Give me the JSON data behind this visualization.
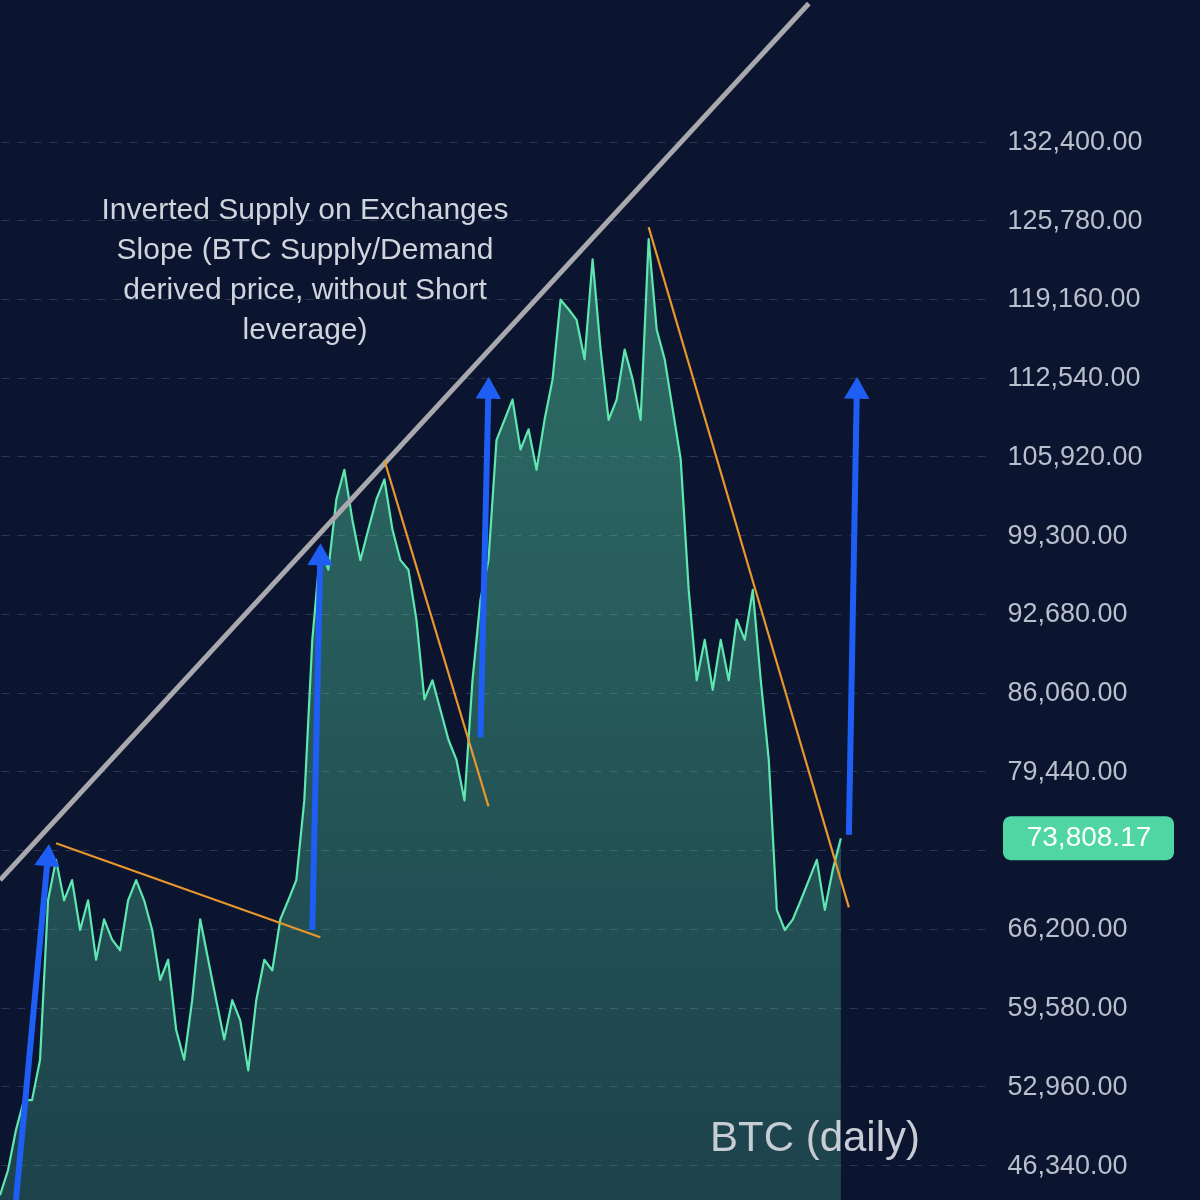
{
  "chart_data": {
    "type": "area",
    "categories": [
      null,
      null,
      null,
      null,
      null,
      null,
      null,
      null,
      null,
      null,
      null,
      null,
      null,
      null,
      null,
      null,
      null,
      null,
      null,
      null,
      null,
      null,
      null,
      null,
      null,
      null,
      null,
      null,
      null,
      null,
      null,
      null,
      null,
      null,
      null,
      null,
      null,
      null,
      null,
      null,
      null,
      null,
      null,
      null,
      null,
      null,
      null,
      null,
      null,
      null,
      null,
      null,
      null,
      null,
      null,
      null,
      null,
      null,
      null,
      null,
      null,
      null,
      null,
      null,
      null,
      null,
      null,
      null,
      null,
      null,
      null,
      null,
      null,
      null,
      null,
      null,
      null,
      null,
      null,
      null,
      null,
      null,
      null,
      null,
      null,
      null,
      null,
      null,
      null,
      null,
      null,
      null,
      null,
      null,
      null,
      null,
      null,
      null,
      null,
      null,
      null,
      null,
      null,
      null,
      null,
      null,
      null,
      null,
      null,
      null,
      null,
      null,
      null,
      null,
      null,
      null,
      null,
      null,
      null,
      null,
      null,
      null,
      null,
      null
    ],
    "series": [
      {
        "color": "#5ee8b0",
        "values": [
          43800,
          45900,
          49300,
          51800,
          51800,
          55200,
          68600,
          72000,
          68600,
          70300,
          66100,
          68600,
          63600,
          67000,
          65300,
          64400,
          68600,
          70300,
          68600,
          66100,
          61900,
          63600,
          57700,
          55200,
          60200,
          67000,
          63600,
          60200,
          56900,
          60200,
          58500,
          54300,
          60200,
          63600,
          62700,
          67000,
          68600,
          70300,
          77000,
          90500,
          98100,
          96400,
          102300,
          104800,
          100600,
          97200,
          99800,
          102300,
          104000,
          99800,
          97200,
          96400,
          92200,
          85500,
          87100,
          84600,
          82100,
          80400,
          77000,
          87100,
          93900,
          97200,
          107300,
          109000,
          110700,
          106500,
          108200,
          104800,
          109000,
          112400,
          119100,
          118300,
          117400,
          114100,
          122500,
          114900,
          109000,
          110700,
          114900,
          112400,
          109000,
          124200,
          116600,
          114100,
          109900,
          105700,
          94700,
          87100,
          90500,
          86300,
          90500,
          87100,
          92200,
          90500,
          94700,
          87100,
          80400,
          67800,
          66100,
          67000,
          68600,
          70300,
          72000,
          67800,
          71200,
          73808.17,
          null,
          null,
          null,
          null,
          null,
          null,
          null,
          null,
          null,
          null,
          null,
          null,
          null,
          null,
          null,
          null,
          null,
          null
        ]
      },
      {
        "type": "line",
        "color": "#a9a9ad",
        "values": [
          70300,
          null,
          null,
          null,
          null,
          null,
          null,
          null,
          null,
          null,
          null,
          null,
          null,
          null,
          null,
          null,
          null,
          null,
          null,
          null,
          null,
          null,
          null,
          null,
          null,
          null,
          null,
          null,
          null,
          null,
          null,
          null,
          null,
          null,
          null,
          null,
          null,
          null,
          null,
          null,
          null,
          null,
          null,
          null,
          null,
          null,
          null,
          null,
          null,
          null,
          null,
          null,
          null,
          null,
          null,
          null,
          null,
          null,
          null,
          null,
          null,
          null,
          null,
          null,
          null,
          null,
          null,
          null,
          null,
          null,
          null,
          null,
          null,
          null,
          null,
          null,
          null,
          null,
          null,
          null,
          null,
          null,
          null,
          null,
          null,
          null,
          null,
          null,
          null,
          null,
          null,
          null,
          null,
          null,
          null,
          null,
          null,
          null,
          null,
          null,
          null,
          144000,
          null,
          null,
          null,
          null,
          null,
          null,
          null,
          null,
          null,
          null,
          null,
          null,
          null,
          null,
          null,
          null,
          null,
          null,
          null,
          null,
          null,
          null
        ]
      },
      {
        "type": "line",
        "color": "#e8962e",
        "values": [
          null,
          null,
          null,
          null,
          null,
          null,
          null,
          73400,
          null,
          null,
          null,
          null,
          null,
          null,
          null,
          null,
          null,
          null,
          null,
          null,
          null,
          null,
          null,
          null,
          null,
          null,
          null,
          null,
          null,
          null,
          null,
          null,
          null,
          null,
          null,
          null,
          null,
          null,
          null,
          null,
          65500,
          null,
          null,
          null,
          null,
          null,
          null,
          null,
          null,
          null,
          null,
          null,
          null,
          null,
          null,
          null,
          null,
          null,
          null,
          null,
          null,
          null,
          null,
          null,
          null,
          null,
          null,
          null,
          null,
          null,
          null,
          null,
          null,
          null,
          null,
          null,
          null,
          null,
          null,
          null,
          null,
          null,
          null,
          null,
          null,
          null,
          null,
          null,
          null,
          null,
          null,
          null,
          null,
          null,
          null,
          null,
          null,
          null,
          null,
          null,
          null,
          null,
          null,
          null,
          null,
          null,
          null,
          null,
          null,
          null,
          null,
          null,
          null,
          null,
          null,
          null,
          null,
          null,
          null,
          null,
          null,
          null,
          null,
          null
        ]
      },
      {
        "type": "line",
        "color": "#e8962e",
        "values": [
          null,
          null,
          null,
          null,
          null,
          null,
          null,
          null,
          null,
          null,
          null,
          null,
          null,
          null,
          null,
          null,
          null,
          null,
          null,
          null,
          null,
          null,
          null,
          null,
          null,
          null,
          null,
          null,
          null,
          null,
          null,
          null,
          null,
          null,
          null,
          null,
          null,
          null,
          null,
          null,
          null,
          null,
          null,
          null,
          null,
          null,
          null,
          null,
          105600,
          null,
          null,
          null,
          null,
          null,
          null,
          null,
          null,
          null,
          null,
          null,
          null,
          76500,
          null,
          null,
          null,
          null,
          null,
          null,
          null,
          null,
          null,
          null,
          null,
          null,
          null,
          null,
          null,
          null,
          null,
          null,
          null,
          null,
          null,
          null,
          null,
          null,
          null,
          null,
          null,
          null,
          null,
          null,
          null,
          null,
          null,
          null,
          null,
          null,
          null,
          null,
          null,
          null,
          null,
          null,
          null,
          null,
          null,
          null,
          null,
          null,
          null,
          null,
          null,
          null,
          null,
          null,
          null,
          null,
          null,
          null,
          null,
          null,
          null,
          null
        ]
      },
      {
        "type": "line",
        "color": "#e8962e",
        "values": [
          null,
          null,
          null,
          null,
          null,
          null,
          null,
          null,
          null,
          null,
          null,
          null,
          null,
          null,
          null,
          null,
          null,
          null,
          null,
          null,
          null,
          null,
          null,
          null,
          null,
          null,
          null,
          null,
          null,
          null,
          null,
          null,
          null,
          null,
          null,
          null,
          null,
          null,
          null,
          null,
          null,
          null,
          null,
          null,
          null,
          null,
          null,
          null,
          null,
          null,
          null,
          null,
          null,
          null,
          null,
          null,
          null,
          null,
          null,
          null,
          null,
          null,
          null,
          null,
          null,
          null,
          null,
          null,
          null,
          null,
          null,
          null,
          null,
          null,
          null,
          null,
          null,
          null,
          null,
          null,
          null,
          125200,
          null,
          null,
          null,
          null,
          null,
          null,
          null,
          null,
          null,
          null,
          null,
          null,
          null,
          null,
          null,
          null,
          null,
          null,
          null,
          null,
          null,
          null,
          null,
          null,
          68000,
          null,
          null,
          null,
          null,
          null,
          null,
          null,
          null,
          null,
          null,
          null,
          null,
          null,
          null,
          null,
          null,
          null
        ]
      },
      {
        "type": "line",
        "color": "#1f5ef5",
        "marker": "triangle",
        "values": [
          null,
          null,
          43400,
          null,
          null,
          null,
          72400,
          null,
          null,
          null,
          null,
          null,
          null,
          null,
          null,
          null,
          null,
          null,
          null,
          null,
          null,
          null,
          null,
          null,
          null,
          null,
          null,
          null,
          null,
          null,
          null,
          null,
          null,
          null,
          null,
          null,
          null,
          null,
          null,
          null,
          null,
          null,
          null,
          null,
          null,
          null,
          null,
          null,
          null,
          null,
          null,
          null,
          null,
          null,
          null,
          null,
          null,
          null,
          null,
          null,
          null,
          null,
          null,
          null,
          null,
          null,
          null,
          null,
          null,
          null,
          null,
          null,
          null,
          null,
          null,
          null,
          null,
          null,
          null,
          null,
          null,
          null,
          null,
          null,
          null,
          null,
          null,
          null,
          null,
          null,
          null,
          null,
          null,
          null,
          null,
          null,
          null,
          null,
          null,
          null,
          null,
          null,
          null,
          null,
          null,
          null,
          null,
          null,
          null,
          null,
          null,
          null,
          null,
          null,
          null,
          null,
          null,
          null,
          null,
          null,
          null,
          null,
          null,
          null
        ]
      },
      {
        "type": "line",
        "color": "#1f5ef5",
        "marker": "triangle",
        "values": [
          null,
          null,
          null,
          null,
          null,
          null,
          null,
          null,
          null,
          null,
          null,
          null,
          null,
          null,
          null,
          null,
          null,
          null,
          null,
          null,
          null,
          null,
          null,
          null,
          null,
          null,
          null,
          null,
          null,
          null,
          null,
          null,
          null,
          null,
          null,
          null,
          null,
          null,
          null,
          66100,
          97700,
          null,
          null,
          null,
          null,
          null,
          null,
          null,
          null,
          null,
          null,
          null,
          null,
          null,
          null,
          null,
          null,
          null,
          null,
          null,
          null,
          null,
          null,
          null,
          null,
          null,
          null,
          null,
          null,
          null,
          null,
          null,
          null,
          null,
          null,
          null,
          null,
          null,
          null,
          null,
          null,
          null,
          null,
          null,
          null,
          null,
          null,
          null,
          null,
          null,
          null,
          null,
          null,
          null,
          null,
          null,
          null,
          null,
          null,
          null,
          null,
          null,
          null,
          null,
          null,
          null,
          null,
          null,
          null,
          null,
          null,
          null,
          null,
          null,
          null,
          null,
          null,
          null,
          null,
          null,
          null,
          null,
          null,
          null
        ]
      },
      {
        "type": "line",
        "color": "#1f5ef5",
        "marker": "triangle",
        "values": [
          null,
          null,
          null,
          null,
          null,
          null,
          null,
          null,
          null,
          null,
          null,
          null,
          null,
          null,
          null,
          null,
          null,
          null,
          null,
          null,
          null,
          null,
          null,
          null,
          null,
          null,
          null,
          null,
          null,
          null,
          null,
          null,
          null,
          null,
          null,
          null,
          null,
          null,
          null,
          null,
          null,
          null,
          null,
          null,
          null,
          null,
          null,
          null,
          null,
          null,
          null,
          null,
          null,
          null,
          null,
          null,
          null,
          null,
          null,
          null,
          82300,
          111700,
          null,
          null,
          null,
          null,
          null,
          null,
          null,
          null,
          null,
          null,
          null,
          null,
          null,
          null,
          null,
          null,
          null,
          null,
          null,
          null,
          null,
          null,
          null,
          null,
          null,
          null,
          null,
          null,
          null,
          null,
          null,
          null,
          null,
          null,
          null,
          null,
          null,
          null,
          null,
          null,
          null,
          null,
          null,
          null,
          null,
          null,
          null,
          null,
          null,
          null,
          null,
          null,
          null,
          null,
          null,
          null,
          null,
          null,
          null,
          null,
          null,
          null
        ]
      },
      {
        "type": "line",
        "color": "#1f5ef5",
        "marker": "triangle",
        "values": [
          null,
          null,
          null,
          null,
          null,
          null,
          null,
          null,
          null,
          null,
          null,
          null,
          null,
          null,
          null,
          null,
          null,
          null,
          null,
          null,
          null,
          null,
          null,
          null,
          null,
          null,
          null,
          null,
          null,
          null,
          null,
          null,
          null,
          null,
          null,
          null,
          null,
          null,
          null,
          null,
          null,
          null,
          null,
          null,
          null,
          null,
          null,
          null,
          null,
          null,
          null,
          null,
          null,
          null,
          null,
          null,
          null,
          null,
          null,
          null,
          null,
          null,
          null,
          null,
          null,
          null,
          null,
          null,
          null,
          null,
          null,
          null,
          null,
          null,
          null,
          null,
          null,
          null,
          null,
          null,
          null,
          null,
          null,
          null,
          null,
          null,
          null,
          null,
          null,
          null,
          null,
          null,
          null,
          null,
          null,
          null,
          null,
          null,
          null,
          null,
          null,
          null,
          null,
          null,
          null,
          null,
          74100,
          111700,
          null,
          null,
          null,
          null,
          null,
          null,
          null,
          null,
          null,
          null,
          null,
          null,
          null,
          null,
          null,
          null
        ]
      }
    ],
    "ylim": [
      43400,
      144300
    ],
    "yticks": [
      {
        "value": 46340,
        "label": "46,340.00"
      },
      {
        "value": 52960,
        "label": "52,960.00"
      },
      {
        "value": 59580,
        "label": "59,580.00"
      },
      {
        "value": 66200,
        "label": "66,200.00"
      },
      {
        "value": 72820,
        "label": null
      },
      {
        "value": 79440,
        "label": "79,440.00"
      },
      {
        "value": 86060,
        "label": "86,060.00"
      },
      {
        "value": 92680,
        "label": "92,680.00"
      },
      {
        "value": 99300,
        "label": "99,300.00"
      },
      {
        "value": 105920,
        "label": "105,920.00"
      },
      {
        "value": 112540,
        "label": "112,540.00"
      },
      {
        "value": 119160,
        "label": "119,160.00"
      },
      {
        "value": 125780,
        "label": "125,780.00"
      },
      {
        "value": 132400,
        "label": "132,400.00"
      }
    ],
    "grid": "y",
    "tick_labels": "y",
    "annotations": [
      "Inverted Supply on Exchanges Slope (BTC Supply/Demand derived price, without Short leverage)",
      "BTC (daily)",
      "73,808.17"
    ]
  }
}
